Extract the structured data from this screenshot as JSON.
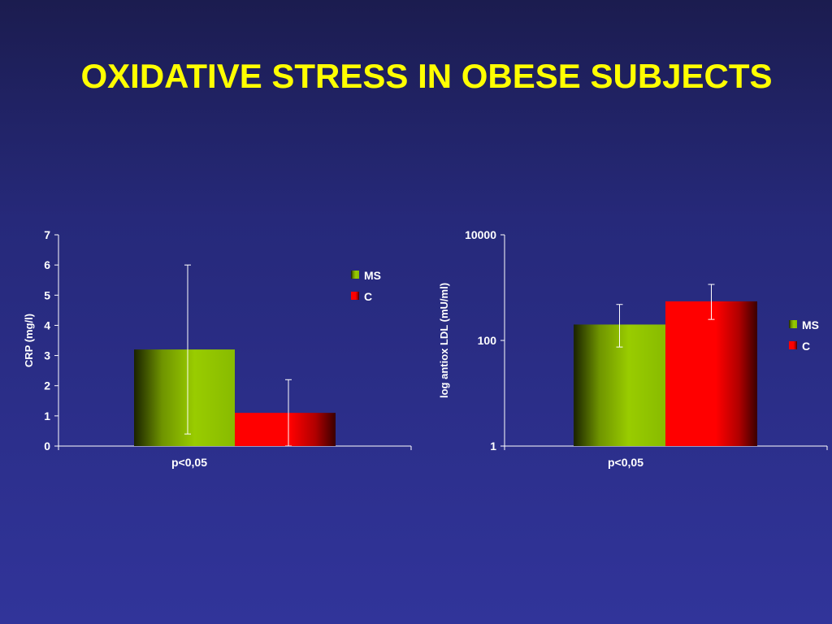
{
  "slide": {
    "title": "OXIDATIVE STRESS IN OBESE SUBJECTS"
  },
  "colors": {
    "background": "#2b2e8a",
    "title": "#ffff00",
    "ms_bar": "#99cc00",
    "c_bar": "#ff0000",
    "axis": "#ffffff"
  },
  "chart_data": [
    {
      "type": "bar",
      "categories": [
        "p<0,05"
      ],
      "ylabel": "CRP (mg/l)",
      "ylim": [
        0,
        7
      ],
      "yticks": [
        "0",
        "1",
        "2",
        "3",
        "4",
        "5",
        "6",
        "7"
      ],
      "series": [
        {
          "name": "MS",
          "values": [
            3.2
          ],
          "error_low": [
            0.4
          ],
          "error_high": [
            6.0
          ]
        },
        {
          "name": "C",
          "values": [
            1.1
          ],
          "error_low": [
            0
          ],
          "error_high": [
            2.2
          ]
        }
      ],
      "legend": "top-right"
    },
    {
      "type": "bar",
      "scale": "log",
      "categories": [
        "p<0,05"
      ],
      "ylabel": "log antiox LDL (mU/ml)",
      "ylim": [
        1,
        10000
      ],
      "yticks": [
        "1",
        "100",
        "10000"
      ],
      "series": [
        {
          "name": "MS",
          "values": [
            200
          ],
          "error_low": [
            75
          ],
          "error_high": [
            480
          ]
        },
        {
          "name": "C",
          "values": [
            550
          ],
          "error_low": [
            250
          ],
          "error_high": [
            1150
          ]
        }
      ],
      "legend": "right"
    }
  ]
}
